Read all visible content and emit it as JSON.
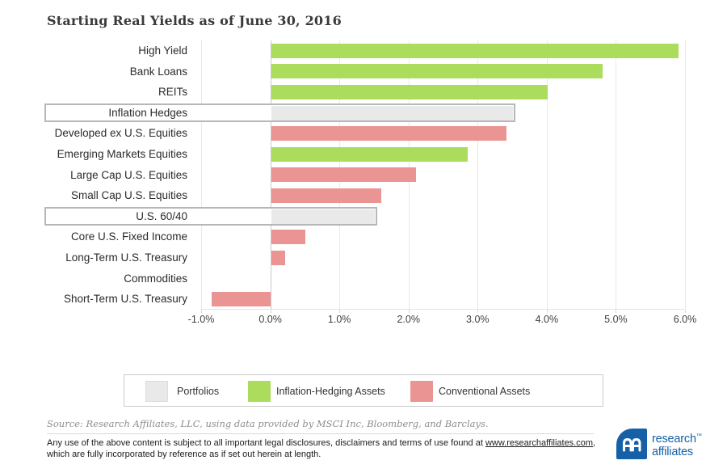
{
  "title": "Starting Real Yields as of June 30, 2016",
  "chart_data": {
    "type": "bar",
    "orientation": "horizontal",
    "title": "Starting Real Yields as of June 30, 2016",
    "categories": [
      "High Yield",
      "Bank Loans",
      "REITs",
      "Inflation Hedges",
      "Developed ex U.S. Equities",
      "Emerging Markets Equities",
      "Large Cap U.S. Equities",
      "Small Cap U.S. Equities",
      "U.S. 60/40",
      "Core U.S. Fixed Income",
      "Long-Term U.S. Treasury",
      "Commodities",
      "Short-Term U.S. Treasury"
    ],
    "values": [
      5.9,
      4.8,
      4.0,
      3.5,
      3.4,
      2.85,
      2.1,
      1.6,
      1.5,
      0.5,
      0.2,
      0.0,
      -0.85
    ],
    "series_class": [
      "hedging",
      "hedging",
      "hedging",
      "portfolio",
      "conventional",
      "hedging",
      "conventional",
      "conventional",
      "portfolio",
      "conventional",
      "conventional",
      "conventional",
      "conventional"
    ],
    "boxed": [
      false,
      false,
      false,
      true,
      false,
      false,
      false,
      false,
      true,
      false,
      false,
      false,
      false
    ],
    "xlim": [
      -1,
      6
    ],
    "x_tick_labels": [
      "-1.0%",
      "0.0%",
      "1.0%",
      "2.0%",
      "3.0%",
      "4.0%",
      "5.0%",
      "6.0%"
    ],
    "grid": true,
    "legend_position": "bottom",
    "unit": "percent"
  },
  "colors": {
    "portfolio": "#e9e9e9",
    "hedging": "#abdc5c",
    "conventional": "#ea9494",
    "highlight_box_border": "#b7b7b7",
    "logo_blue": "#1660a8"
  },
  "legend": {
    "items": [
      {
        "label": "Portfolios",
        "color_key": "portfolio"
      },
      {
        "label": "Inflation-Hedging Assets",
        "color_key": "hedging"
      },
      {
        "label": "Conventional Assets",
        "color_key": "conventional"
      }
    ]
  },
  "footer": {
    "source": "Source: Research Affiliates, LLC, using data provided by MSCI Inc, Bloomberg, and Barclays.",
    "disclaimer_before_link": "Any use of the above content is subject to all important legal disclosures, disclaimers and terms of use found at ",
    "disclaimer_link": "www.researchaffiliates.com",
    "disclaimer_after_link": ",",
    "disclaimer_line2": "which are fully incorporated by reference as if set out herein at length.",
    "logo_line1": "research",
    "logo_tm": "™",
    "logo_line2": "affiliates"
  }
}
